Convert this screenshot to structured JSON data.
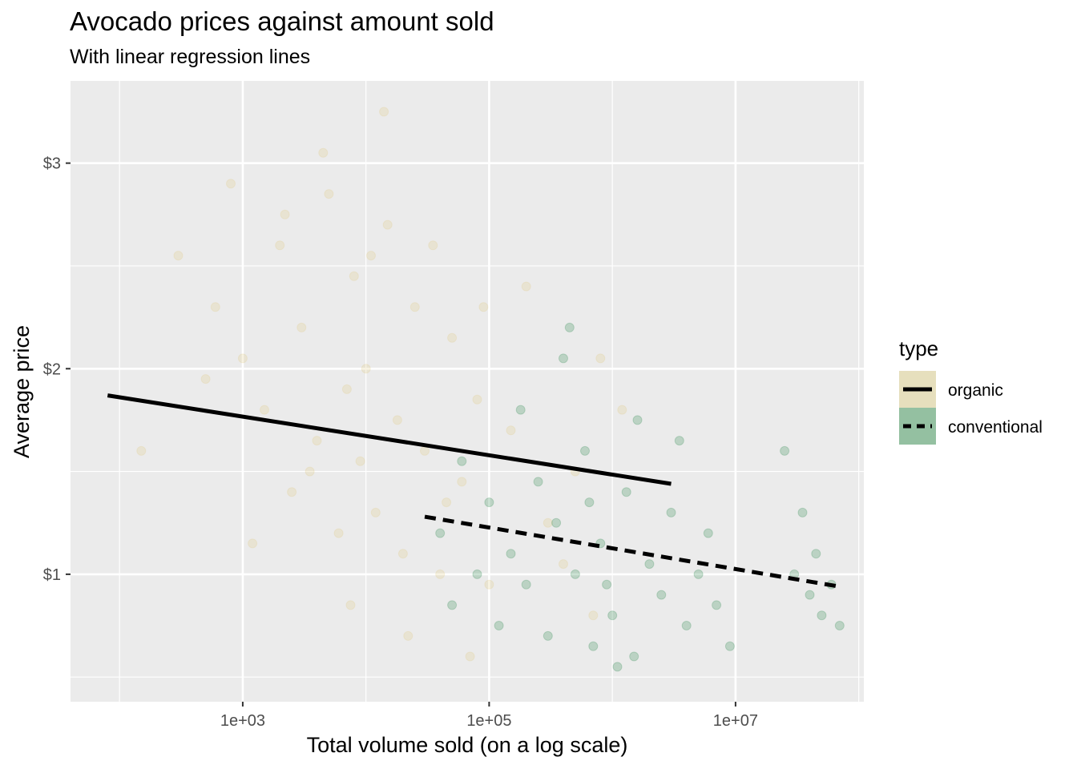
{
  "chart_data": {
    "type": "scatter",
    "title": "Avocado prices against amount sold",
    "subtitle": "With linear regression lines",
    "xlabel": "Total volume sold (on a log scale)",
    "ylabel": "Average price",
    "x_scale": "log10",
    "xlim": [
      40,
      110000000
    ],
    "ylim": [
      0.38,
      3.4
    ],
    "x_ticks": [
      {
        "value": 1000,
        "label": "1e+03"
      },
      {
        "value": 100000,
        "label": "1e+05"
      },
      {
        "value": 10000000,
        "label": "1e+07"
      }
    ],
    "y_ticks": [
      {
        "value": 1,
        "label": "$1"
      },
      {
        "value": 2,
        "label": "$2"
      },
      {
        "value": 3,
        "label": "$3"
      }
    ],
    "grid": true,
    "legend": {
      "title": "type",
      "position": "right",
      "entries": [
        {
          "label": "organic",
          "line": "solid",
          "fill": "#e6dfbd"
        },
        {
          "label": "conventional",
          "line": "dashed",
          "fill": "#94c0a1"
        }
      ]
    },
    "series": [
      {
        "name": "organic",
        "color": "#e0c97a",
        "point_opacity": 0.22,
        "regression": {
          "line": "solid",
          "x": [
            80,
            3000000
          ],
          "y": [
            1.87,
            1.44
          ]
        },
        "points": [
          [
            300,
            2.55
          ],
          [
            600,
            2.3
          ],
          [
            800,
            2.9
          ],
          [
            1000,
            2.05
          ],
          [
            1500,
            1.8
          ],
          [
            2000,
            2.6
          ],
          [
            2500,
            1.4
          ],
          [
            3000,
            2.2
          ],
          [
            4000,
            1.65
          ],
          [
            5000,
            2.85
          ],
          [
            6000,
            1.2
          ],
          [
            7000,
            1.9
          ],
          [
            8000,
            2.45
          ],
          [
            9000,
            1.55
          ],
          [
            10000,
            2.0
          ],
          [
            12000,
            1.3
          ],
          [
            15000,
            2.7
          ],
          [
            18000,
            1.75
          ],
          [
            20000,
            1.1
          ],
          [
            25000,
            2.3
          ],
          [
            30000,
            1.6
          ],
          [
            40000,
            1.0
          ],
          [
            50000,
            2.15
          ],
          [
            60000,
            1.45
          ],
          [
            80000,
            1.85
          ],
          [
            100000,
            0.95
          ],
          [
            150000,
            1.7
          ],
          [
            200000,
            2.4
          ],
          [
            300000,
            1.25
          ],
          [
            500000,
            1.5
          ],
          [
            800000,
            2.05
          ],
          [
            1200000,
            1.8
          ],
          [
            150,
            1.6
          ],
          [
            500,
            1.95
          ],
          [
            1200,
            1.15
          ],
          [
            2200,
            2.75
          ],
          [
            3500,
            1.5
          ],
          [
            4500,
            3.05
          ],
          [
            7500,
            0.85
          ],
          [
            11000,
            2.55
          ],
          [
            14000,
            3.25
          ],
          [
            22000,
            0.7
          ],
          [
            35000,
            2.6
          ],
          [
            45000,
            1.35
          ],
          [
            70000,
            0.6
          ],
          [
            90000,
            2.3
          ],
          [
            400000,
            1.05
          ],
          [
            700000,
            0.8
          ]
        ]
      },
      {
        "name": "conventional",
        "color": "#117b36",
        "point_opacity": 0.22,
        "regression": {
          "line": "dashed",
          "x": [
            30000,
            70000000
          ],
          "y": [
            1.28,
            0.94
          ]
        },
        "points": [
          [
            40000,
            1.2
          ],
          [
            50000,
            0.85
          ],
          [
            60000,
            1.55
          ],
          [
            80000,
            1.0
          ],
          [
            100000,
            1.35
          ],
          [
            120000,
            0.75
          ],
          [
            150000,
            1.1
          ],
          [
            180000,
            1.8
          ],
          [
            200000,
            0.95
          ],
          [
            250000,
            1.45
          ],
          [
            300000,
            0.7
          ],
          [
            350000,
            1.25
          ],
          [
            400000,
            2.05
          ],
          [
            500000,
            1.0
          ],
          [
            600000,
            1.6
          ],
          [
            700000,
            0.65
          ],
          [
            800000,
            1.15
          ],
          [
            1000000,
            0.8
          ],
          [
            1100000,
            0.55
          ],
          [
            1300000,
            1.4
          ],
          [
            1600000,
            1.75
          ],
          [
            2000000,
            1.05
          ],
          [
            2500000,
            0.9
          ],
          [
            3000000,
            1.3
          ],
          [
            3500000,
            1.65
          ],
          [
            4000000,
            0.75
          ],
          [
            5000000,
            1.0
          ],
          [
            6000000,
            1.2
          ],
          [
            7000000,
            0.85
          ],
          [
            9000000,
            0.65
          ],
          [
            25000000,
            1.6
          ],
          [
            30000000,
            1.0
          ],
          [
            35000000,
            1.3
          ],
          [
            40000000,
            0.9
          ],
          [
            45000000,
            1.1
          ],
          [
            50000000,
            0.8
          ],
          [
            60000000,
            0.95
          ],
          [
            70000000,
            0.75
          ],
          [
            450000,
            2.2
          ],
          [
            650000,
            1.35
          ],
          [
            900000,
            0.95
          ],
          [
            1500000,
            0.6
          ]
        ]
      }
    ]
  }
}
